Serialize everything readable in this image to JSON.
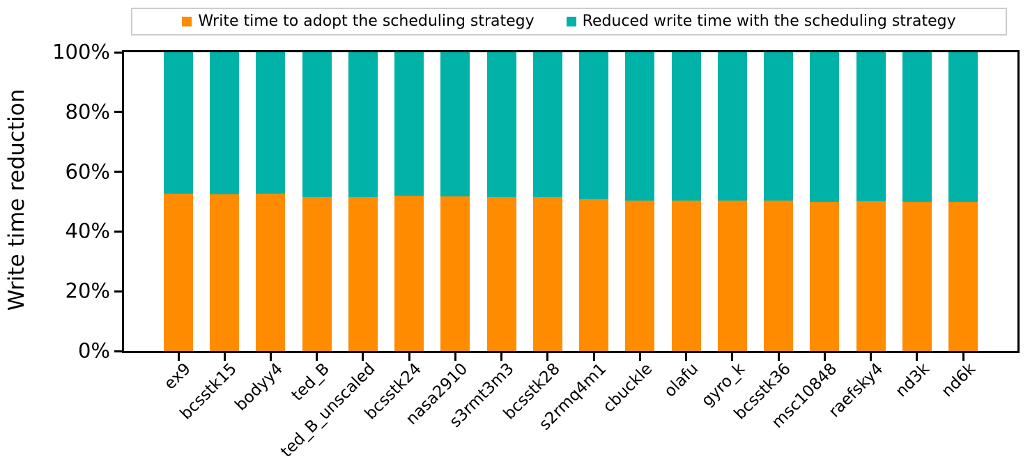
{
  "legend": {
    "items": [
      {
        "name": "adopt",
        "label": "Write time to adopt the scheduling strategy",
        "color": "#FF8C00",
        "swatch_icon": "orange-square-icon"
      },
      {
        "name": "reduced",
        "label": "Reduced write time with the scheduling strategy",
        "color": "#00B2A8",
        "swatch_icon": "teal-square-icon"
      }
    ]
  },
  "chart_data": {
    "type": "bar",
    "stacked": true,
    "title": "",
    "xlabel": "",
    "ylabel": "Write time reduction",
    "ylim": [
      0,
      100
    ],
    "grid": false,
    "legend_position": "top",
    "ytick_values": [
      0,
      20,
      40,
      60,
      80,
      100
    ],
    "ytick_labels": [
      "0%",
      "20%",
      "40%",
      "60%",
      "80%",
      "100%"
    ],
    "categories": [
      "ex9",
      "bcsstk15",
      "bodyy4",
      "ted_B",
      "ted_B_unscaled",
      "bcsstk24",
      "nasa2910",
      "s3rmt3m3",
      "bcsstk28",
      "s2rmq4m1",
      "cbuckle",
      "olafu",
      "gyro_k",
      "bcsstk36",
      "msc10848",
      "raefsky4",
      "nd3k",
      "nd6k"
    ],
    "series": [
      {
        "name": "Write time to adopt the scheduling strategy",
        "color": "#FF8C00",
        "values": [
          52.6,
          52.4,
          52.6,
          51.6,
          51.6,
          51.9,
          51.7,
          51.6,
          51.4,
          50.8,
          50.3,
          50.3,
          50.3,
          50.3,
          50.0,
          50.2,
          49.8,
          49.9
        ]
      },
      {
        "name": "Reduced write time with the scheduling strategy",
        "color": "#00B2A8",
        "values": [
          47.4,
          47.6,
          47.4,
          48.4,
          48.4,
          48.1,
          48.3,
          48.4,
          48.6,
          49.2,
          49.7,
          49.7,
          49.7,
          49.7,
          50.0,
          49.8,
          50.2,
          50.1
        ]
      }
    ]
  }
}
